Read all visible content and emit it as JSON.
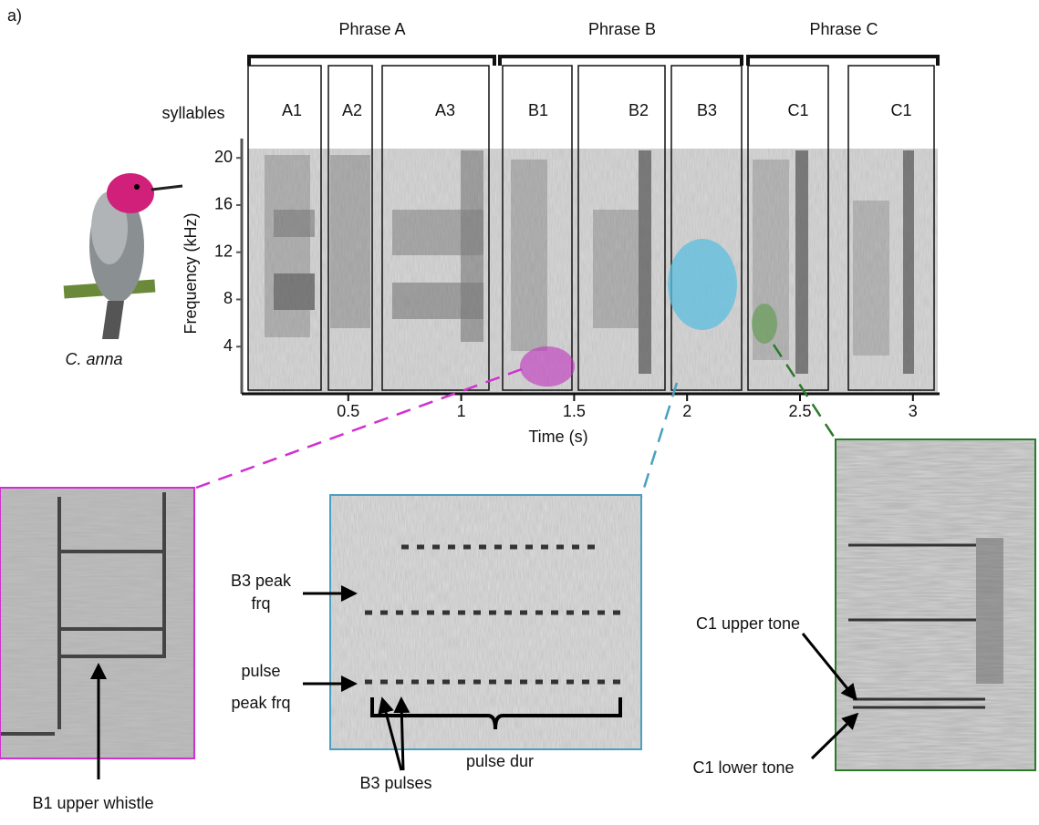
{
  "panel_label": "a)",
  "phrases": [
    "Phrase A",
    "Phrase B",
    "Phrase C"
  ],
  "syllables_label": "syllables",
  "syllables": [
    "A1",
    "A2",
    "A3",
    "B1",
    "B2",
    "B3",
    "C1",
    "C1"
  ],
  "species": "C. anna",
  "spectrogram": {
    "y_label": "Frequency (kHz)",
    "x_label": "Time  (s)",
    "yticks": [
      4,
      8,
      12,
      16,
      20
    ],
    "xticks": [
      0.5,
      1,
      1.5,
      2,
      2.5,
      3
    ]
  },
  "insets": {
    "b1": {
      "annotation": "B1 upper whistle"
    },
    "b3": {
      "peak": [
        "B3 peak",
        "frq"
      ],
      "pulse_peak": [
        "pulse",
        "peak frq"
      ],
      "pulses": "B3 pulses",
      "duration": "pulse dur"
    },
    "c1": {
      "upper": "C1 upper tone",
      "lower": "C1 lower tone"
    }
  }
}
